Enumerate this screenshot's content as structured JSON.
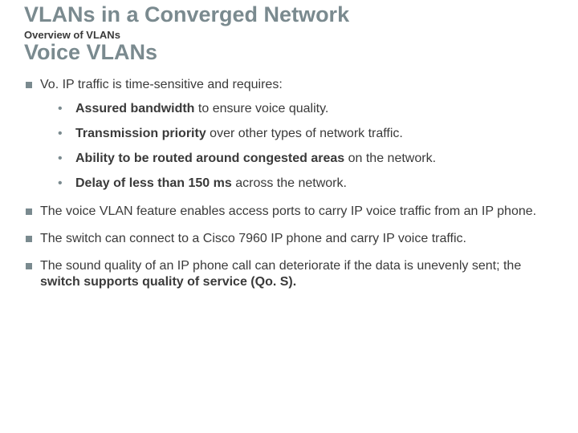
{
  "title": "VLANs in a Converged Network",
  "overview": "Overview of VLANs",
  "subtitle": "Voice VLANs",
  "bullets": {
    "b0": "Vo. IP traffic is time-sensitive and requires:",
    "s0_bold": "Assured bandwidth",
    "s0_rest": " to ensure voice quality.",
    "s1_bold": "Transmission priority",
    "s1_rest": " over other types of network traffic.",
    "s2_bold": "Ability to be routed around congested areas",
    "s2_rest": " on the network.",
    "s3_bold": "Delay of less than 150 ms",
    "s3_rest": " across the network.",
    "b1": "The voice VLAN feature enables access ports to carry IP voice traffic from an IP phone.",
    "b2": "The switch can connect to a Cisco 7960 IP phone and carry IP voice traffic.",
    "b3_a": "The sound quality of an IP phone call can deteriorate if the data is unevenly sent; the ",
    "b3_bold": "switch supports quality of service (Qo. S).",
    "b3_c": ""
  },
  "colors": {
    "heading": "#7a8a8f",
    "text": "#3a3a3a",
    "bg": "#ffffff"
  },
  "fonts": {
    "title_size": 27,
    "overview_size": 13,
    "body_size": 16
  }
}
